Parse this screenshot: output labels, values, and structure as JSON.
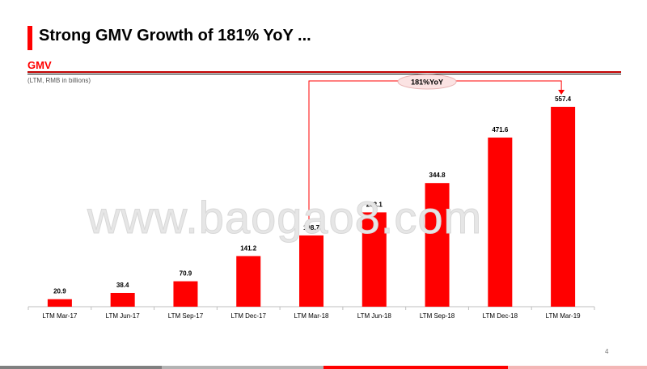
{
  "slide": {
    "title": "Strong GMV Growth of 181% YoY ...",
    "section_label": "GMV",
    "units_note": "(LTM, RMB in billions)",
    "page_number": "4",
    "watermark": "www.baogao8.com"
  },
  "colors": {
    "accent": "#ff0000",
    "rule": "#c00000",
    "footer": [
      "#808080",
      "#b3b3b3",
      "#ff0000",
      "#f4b6b6"
    ]
  },
  "chart_data": {
    "type": "bar",
    "categories": [
      "LTM Mar-17",
      "LTM Jun-17",
      "LTM Sep-17",
      "LTM Dec-17",
      "LTM Mar-18",
      "LTM Jun-18",
      "LTM Sep-18",
      "LTM Dec-18",
      "LTM Mar-19"
    ],
    "values": [
      20.9,
      38.4,
      70.9,
      141.2,
      198.7,
      263.1,
      344.8,
      471.6,
      557.4
    ],
    "value_labels": [
      "20.9",
      "38.4",
      "70.9",
      "141.2",
      "198.7",
      "263.1",
      "344.8",
      "471.6",
      "557.4"
    ],
    "ylabel": "(LTM, RMB in billions)",
    "ylim": [
      0,
      600
    ],
    "grid": false,
    "bar_color": "#ff0000",
    "annotation": {
      "text": "181%YoY",
      "from_category": "LTM Mar-18",
      "to_category": "LTM Mar-19"
    }
  }
}
